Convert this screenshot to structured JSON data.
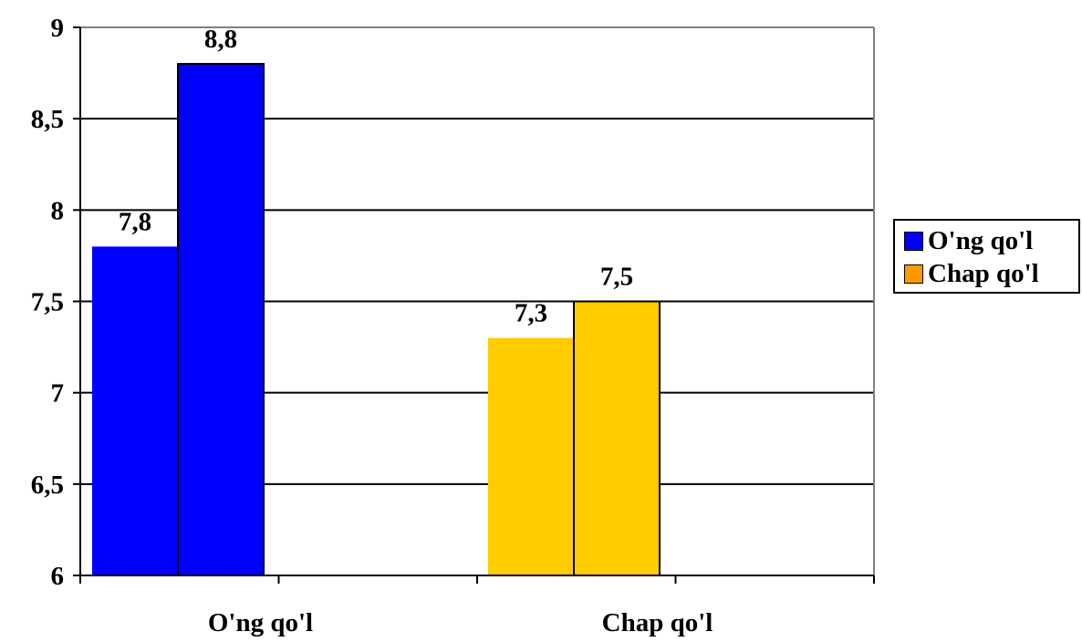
{
  "chart_data": {
    "type": "bar",
    "categories": [
      "O'ng qo'l",
      "Chap qo'l"
    ],
    "bars": [
      {
        "category": "O'ng qo'l",
        "value": 7.8,
        "label": "7,8",
        "color": "#0000ff"
      },
      {
        "category": "O'ng qo'l",
        "value": 8.8,
        "label": "8,8",
        "color": "#0000ff"
      },
      {
        "category": "Chap qo'l",
        "value": 7.3,
        "label": "7,3",
        "color": "#ffcc00"
      },
      {
        "category": "Chap qo'l",
        "value": 7.5,
        "label": "7,5",
        "color": "#ffcc00"
      }
    ],
    "ylim": [
      6,
      9
    ],
    "y_ticks": [
      {
        "value": 6,
        "label": "6"
      },
      {
        "value": 6.5,
        "label": "6,5"
      },
      {
        "value": 7,
        "label": "7"
      },
      {
        "value": 7.5,
        "label": "7,5"
      },
      {
        "value": 8,
        "label": "8"
      },
      {
        "value": 8.5,
        "label": "8,5"
      },
      {
        "value": 9,
        "label": "9"
      }
    ],
    "grid": true,
    "legend": {
      "position": "right",
      "items": [
        {
          "label": "O'ng qo'l",
          "color": "#0000ff"
        },
        {
          "label": "Chap qo'l",
          "color": "#ff9900"
        }
      ]
    },
    "title": "",
    "xlabel": "",
    "ylabel": ""
  }
}
